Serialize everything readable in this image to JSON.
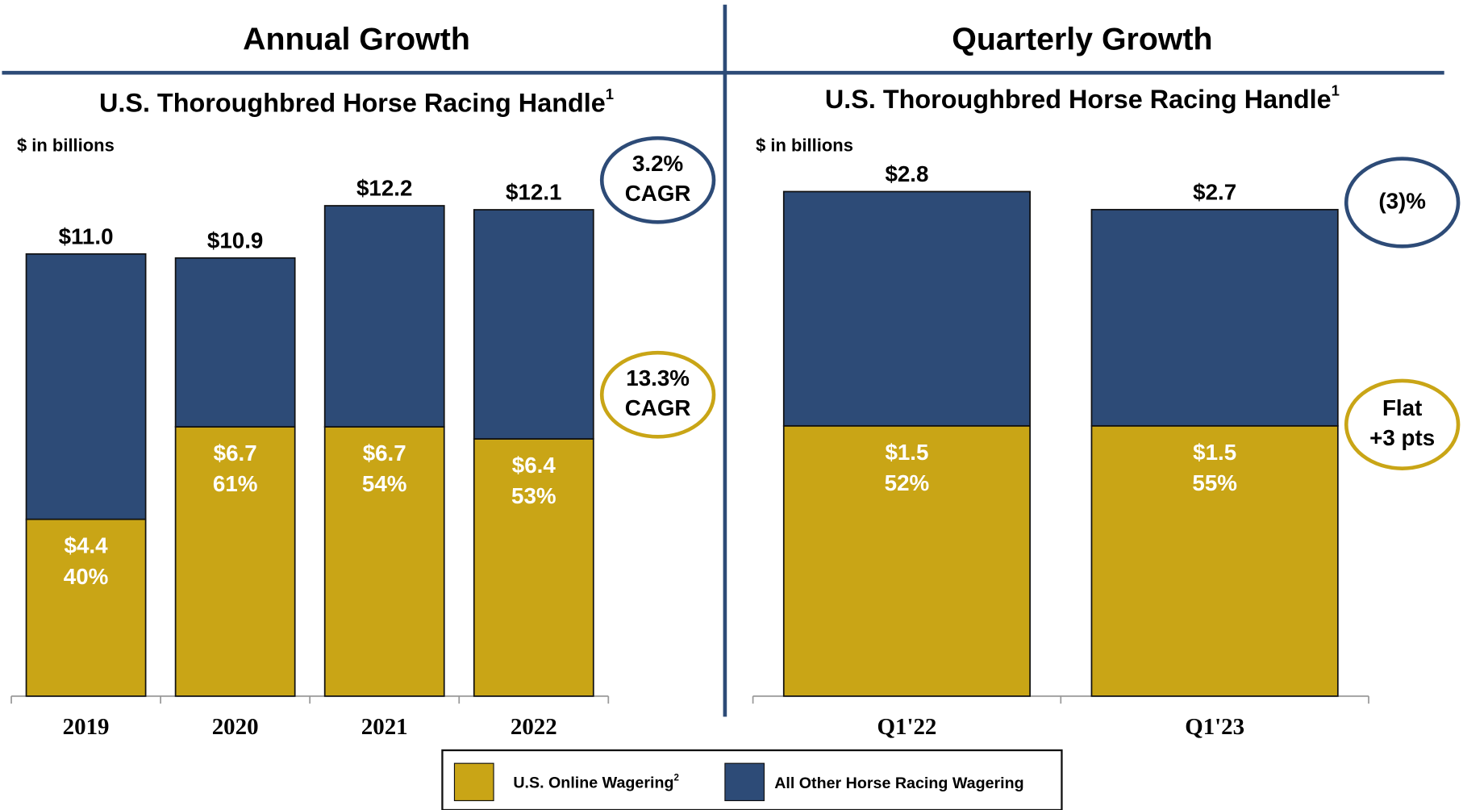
{
  "charts": [
    {
      "header": "Annual Growth",
      "chart_data": {
        "type": "bar",
        "stacked": true,
        "title": "U.S. Thoroughbred Horse Racing Handle",
        "title_note": "1",
        "unit_label": "$ in billions",
        "categories": [
          "2019",
          "2020",
          "2021",
          "2022"
        ],
        "series": [
          {
            "name": "U.S. Online Wagering",
            "color": "#c9a516",
            "values": [
              4.4,
              6.7,
              6.7,
              6.4
            ],
            "value_labels": [
              "$4.4",
              "$6.7",
              "$6.7",
              "$6.4"
            ],
            "share_labels": [
              "40%",
              "61%",
              "54%",
              "53%"
            ]
          },
          {
            "name": "All Other Horse Racing Wagering",
            "color": "#2d4b77",
            "values": [
              6.6,
              4.2,
              5.5,
              5.7
            ]
          }
        ],
        "totals": [
          11.0,
          10.9,
          12.2,
          12.1
        ],
        "total_labels": [
          "$11.0",
          "$10.9",
          "$12.2",
          "$12.1"
        ],
        "ylim": [
          0,
          13
        ],
        "annotations": [
          {
            "lines": [
              "3.2%",
              "CAGR"
            ],
            "color": "#2d4b77"
          },
          {
            "lines": [
              "13.3%",
              "CAGR"
            ],
            "color": "#c9a516"
          }
        ]
      }
    },
    {
      "header": "Quarterly Growth",
      "chart_data": {
        "type": "bar",
        "stacked": true,
        "title": "U.S. Thoroughbred Horse Racing Handle",
        "title_note": "1",
        "unit_label": "$ in billions",
        "categories": [
          "Q1'22",
          "Q1'23"
        ],
        "series": [
          {
            "name": "U.S. Online Wagering",
            "color": "#c9a516",
            "values": [
              1.5,
              1.5
            ],
            "value_labels": [
              "$1.5",
              "$1.5"
            ],
            "share_labels": [
              "52%",
              "55%"
            ]
          },
          {
            "name": "All Other Horse Racing Wagering",
            "color": "#2d4b77",
            "values": [
              1.3,
              1.2
            ]
          }
        ],
        "totals": [
          2.8,
          2.7
        ],
        "total_labels": [
          "$2.8",
          "$2.7"
        ],
        "ylim": [
          0,
          2.9
        ],
        "annotations": [
          {
            "lines": [
              "(3)%"
            ],
            "color": "#2d4b77"
          },
          {
            "lines": [
              "Flat",
              "+3 pts"
            ],
            "color": "#c9a516"
          }
        ]
      }
    }
  ],
  "legend": {
    "note": "2"
  }
}
